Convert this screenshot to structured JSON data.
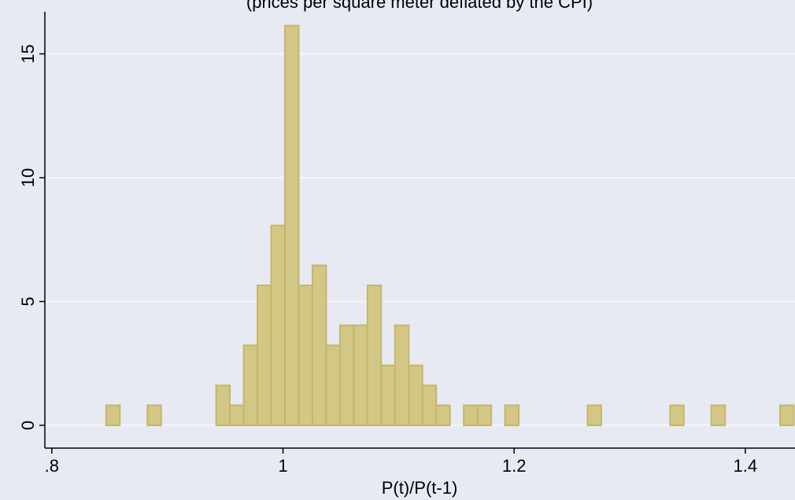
{
  "chart_data": {
    "type": "histogram",
    "subtitle": "(prices per square meter deflated by the CPI)",
    "x_label": "P(t)/P(t-1)",
    "bins": [
      0.847,
      0.8589,
      0.8708,
      0.8827,
      0.8946,
      0.9065,
      0.9184,
      0.9303,
      0.9422,
      0.9541,
      0.966,
      0.9779,
      0.9898,
      1.0017,
      1.0136,
      1.0255,
      1.0374,
      1.0493,
      1.0612,
      1.0731,
      1.085,
      1.0969,
      1.1088,
      1.1207,
      1.1326,
      1.1445,
      1.1564,
      1.1683,
      1.1802,
      1.1921,
      1.204,
      1.2159,
      1.2278,
      1.2397,
      1.2516,
      1.2635,
      1.2754,
      1.2873,
      1.2992,
      1.3111,
      1.323,
      1.3349,
      1.3468,
      1.3587,
      1.3706,
      1.3825,
      1.3944,
      1.4063,
      1.4182,
      1.4301,
      1.442
    ],
    "values": [
      0.81,
      0,
      0,
      0.81,
      0,
      0,
      0,
      0,
      1.61,
      0.81,
      3.23,
      5.65,
      8.07,
      16.14,
      5.65,
      6.46,
      3.23,
      4.04,
      4.04,
      5.65,
      2.42,
      4.04,
      2.42,
      1.61,
      0.81,
      0,
      0.81,
      0.81,
      0,
      0.81,
      0,
      0,
      0,
      0,
      0,
      0.81,
      0,
      0,
      0,
      0,
      0,
      0.81,
      0,
      0,
      0.81,
      0,
      0,
      0,
      0,
      0.81
    ],
    "color": "#d2c784",
    "xlim": [
      0.794,
      1.443
    ],
    "xticks": [
      {
        "value": 0.8,
        "label": ".8"
      },
      1,
      1.2,
      1.4
    ],
    "ylim": [
      -0.92,
      16.7
    ],
    "yticks": [
      0,
      5,
      10,
      15
    ],
    "grid": true
  }
}
